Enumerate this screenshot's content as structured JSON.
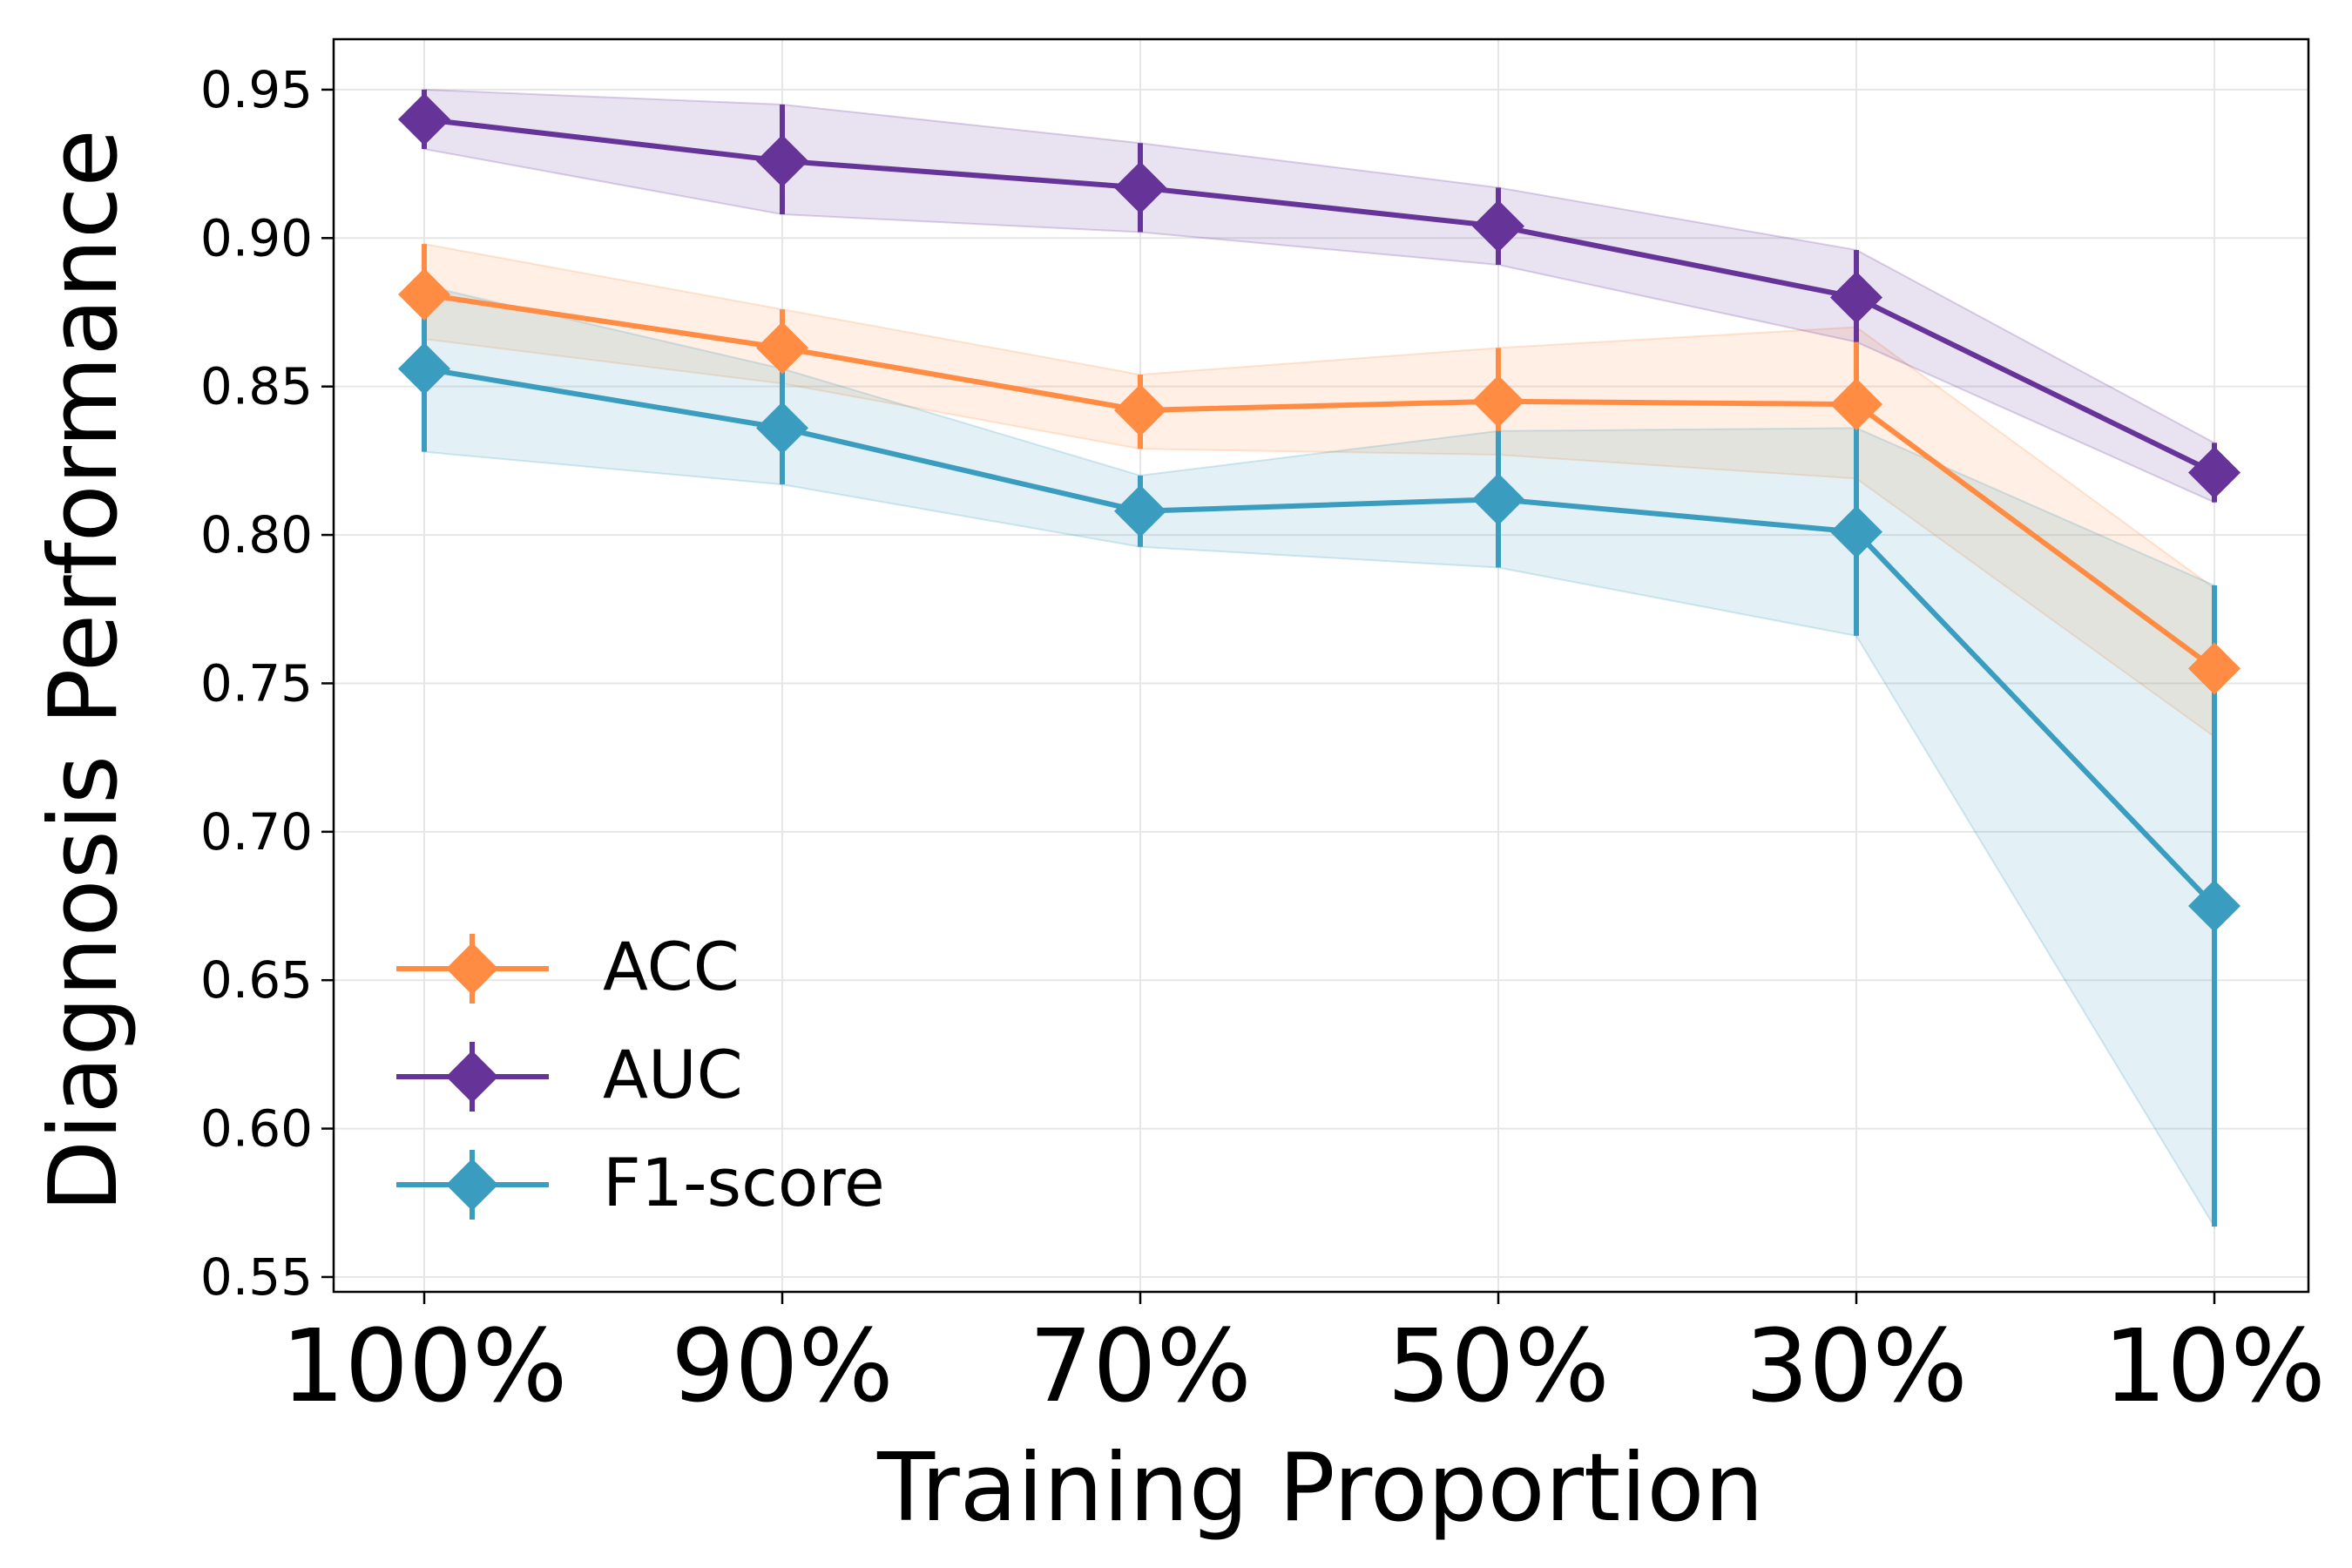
{
  "chart_data": {
    "type": "line",
    "title": "",
    "xlabel": "Training Proportion",
    "ylabel": "Diagnosis Performance",
    "categories": [
      "100%",
      "90%",
      "70%",
      "50%",
      "30%",
      "10%"
    ],
    "ylim": [
      0.545,
      0.967
    ],
    "yticks": [
      {
        "value": 0.55,
        "label": "0.55"
      },
      {
        "value": 0.6,
        "label": "0.60"
      },
      {
        "value": 0.65,
        "label": "0.65"
      },
      {
        "value": 0.7,
        "label": "0.70"
      },
      {
        "value": 0.75,
        "label": "0.75"
      },
      {
        "value": 0.8,
        "label": "0.80"
      },
      {
        "value": 0.85,
        "label": "0.85"
      },
      {
        "value": 0.9,
        "label": "0.90"
      },
      {
        "value": 0.95,
        "label": "0.95"
      }
    ],
    "grid": true,
    "legend_position": "lower-left",
    "series": [
      {
        "name": "ACC",
        "color": "#FF8C42",
        "values": [
          0.881,
          0.863,
          0.842,
          0.845,
          0.844,
          0.755
        ],
        "err_low": [
          0.866,
          0.851,
          0.829,
          0.827,
          0.819,
          0.732
        ],
        "err_high": [
          0.898,
          0.876,
          0.854,
          0.863,
          0.87,
          0.782
        ]
      },
      {
        "name": "AUC",
        "color": "#663399",
        "values": [
          0.94,
          0.926,
          0.917,
          0.904,
          0.88,
          0.821
        ],
        "err_low": [
          0.93,
          0.908,
          0.902,
          0.891,
          0.865,
          0.811
        ],
        "err_high": [
          0.95,
          0.945,
          0.932,
          0.917,
          0.896,
          0.831
        ]
      },
      {
        "name": "F1-score",
        "color": "#3A9DBF",
        "values": [
          0.856,
          0.836,
          0.808,
          0.812,
          0.801,
          0.675
        ],
        "err_low": [
          0.828,
          0.817,
          0.796,
          0.789,
          0.766,
          0.567
        ],
        "err_high": [
          0.884,
          0.856,
          0.82,
          0.835,
          0.836,
          0.783
        ]
      }
    ]
  }
}
